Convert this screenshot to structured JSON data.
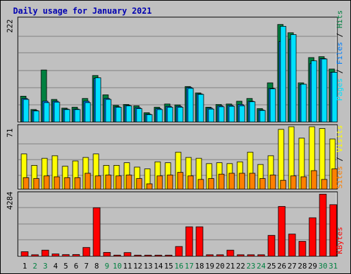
{
  "title": "Daily usage for January 2021",
  "colors": {
    "hits": "#008040",
    "files": "#0080ff",
    "pages": "#00e0ff",
    "visits": "#ffff00",
    "sites": "#ff8000",
    "kbytes": "#ff0000",
    "title": "#0000b0",
    "weekend": "#008040",
    "weekday": "#000000"
  },
  "chart_data": [
    {
      "type": "bar",
      "title": "Daily usage for January 2021",
      "panel": "hits-files-pages",
      "ymax_label": "222",
      "ylim": [
        0,
        222
      ],
      "legend": [
        "Pages",
        "Files",
        "Hits"
      ],
      "categories": [
        "1",
        "2",
        "3",
        "4",
        "5",
        "6",
        "7",
        "8",
        "9",
        "10",
        "11",
        "12",
        "13",
        "14",
        "15",
        "16",
        "17",
        "18",
        "19",
        "20",
        "21",
        "22",
        "23",
        "24",
        "25",
        "26",
        "27",
        "28",
        "29",
        "30",
        "31"
      ],
      "series": [
        {
          "name": "Hits",
          "values": [
            56,
            27,
            113,
            49,
            30,
            32,
            51,
            101,
            59,
            36,
            38,
            35,
            20,
            32,
            39,
            37,
            77,
            63,
            32,
            38,
            39,
            45,
            51,
            29,
            85,
            212,
            194,
            85,
            140,
            142,
            115
          ]
        },
        {
          "name": "Files",
          "values": [
            51,
            25,
            45,
            45,
            28,
            28,
            45,
            95,
            51,
            33,
            36,
            31,
            17,
            29,
            34,
            34,
            75,
            61,
            30,
            35,
            36,
            38,
            45,
            26,
            73,
            175,
            180,
            81,
            127,
            138,
            108
          ]
        },
        {
          "name": "Pages",
          "values": [
            49,
            24,
            42,
            43,
            27,
            27,
            42,
            96,
            49,
            32,
            35,
            29,
            16,
            27,
            32,
            32,
            73,
            60,
            28,
            33,
            34,
            35,
            44,
            25,
            72,
            208,
            190,
            82,
            133,
            137,
            108
          ]
        }
      ]
    },
    {
      "type": "bar",
      "panel": "visits-sites",
      "ymax_label": "71",
      "ylim": [
        0,
        71
      ],
      "legend": [
        "Sites",
        "Visits"
      ],
      "categories": [
        "1",
        "2",
        "3",
        "4",
        "5",
        "6",
        "7",
        "8",
        "9",
        "10",
        "11",
        "12",
        "13",
        "14",
        "15",
        "16",
        "17",
        "18",
        "19",
        "20",
        "21",
        "22",
        "23",
        "24",
        "25",
        "26",
        "27",
        "28",
        "29",
        "30",
        "31"
      ],
      "series": [
        {
          "name": "Visits",
          "values": [
            40,
            27,
            35,
            38,
            26,
            32,
            36,
            40,
            27,
            27,
            30,
            25,
            23,
            31,
            30,
            42,
            36,
            35,
            29,
            30,
            29,
            31,
            42,
            28,
            38,
            68,
            71,
            58,
            71,
            69,
            57
          ]
        },
        {
          "name": "Sites",
          "values": [
            13,
            12,
            15,
            14,
            13,
            13,
            18,
            15,
            16,
            15,
            16,
            12,
            6,
            15,
            16,
            19,
            15,
            11,
            12,
            17,
            18,
            18,
            18,
            12,
            16,
            10,
            15,
            14,
            21,
            11,
            23
          ]
        }
      ]
    },
    {
      "type": "bar",
      "panel": "kbytes",
      "ymax_label": "4284",
      "ylim": [
        0,
        4284
      ],
      "legend": [
        "KBytes"
      ],
      "categories": [
        "1",
        "2",
        "3",
        "4",
        "5",
        "6",
        "7",
        "8",
        "9",
        "10",
        "11",
        "12",
        "13",
        "14",
        "15",
        "16",
        "17",
        "18",
        "19",
        "20",
        "21",
        "22",
        "23",
        "24",
        "25",
        "26",
        "27",
        "28",
        "29",
        "30",
        "31"
      ],
      "series": [
        {
          "name": "KBytes",
          "values": [
            310,
            100,
            415,
            155,
            110,
            115,
            600,
            3330,
            260,
            75,
            250,
            70,
            70,
            70,
            70,
            665,
            2020,
            2020,
            100,
            100,
            415,
            100,
            100,
            100,
            1430,
            3420,
            1520,
            1020,
            2640,
            4260,
            3540
          ]
        }
      ]
    }
  ],
  "weekend_days": [
    "2",
    "3",
    "9",
    "10",
    "16",
    "17",
    "23",
    "24",
    "30",
    "31"
  ]
}
